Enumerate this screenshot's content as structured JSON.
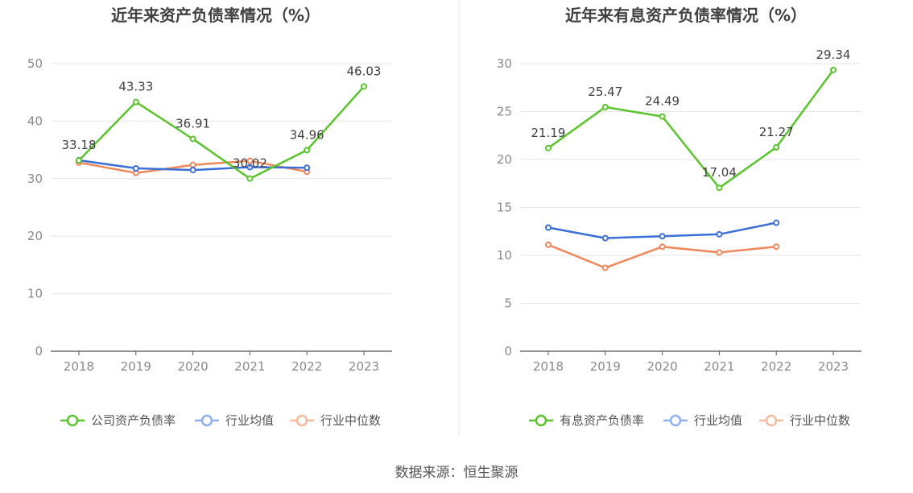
{
  "source": "数据来源：恒生聚源",
  "colors": {
    "company": "#5ac42d",
    "industry_avg": "#3a6fd8",
    "industry_median": "#f0875a",
    "legend_avg": "#8fb0ef",
    "legend_median": "#f7b99c",
    "grid": "#e6e6e6",
    "axis": "#555555",
    "divider": "#e8e8e8"
  },
  "chart_data": [
    {
      "type": "line",
      "title": "近年来资产负债率情况（%）",
      "categories": [
        "2018",
        "2019",
        "2020",
        "2021",
        "2022",
        "2023"
      ],
      "ylim": [
        0,
        50
      ],
      "yticks": [
        0,
        10,
        20,
        30,
        40,
        50
      ],
      "series": [
        {
          "name": "公司资产负债率",
          "key": "company",
          "values": [
            33.18,
            43.33,
            36.91,
            30.02,
            34.96,
            46.03
          ],
          "labels": true
        },
        {
          "name": "行业均值",
          "key": "industry_avg",
          "values": [
            33.2,
            31.8,
            31.5,
            32.0,
            31.9,
            null
          ],
          "labels": false
        },
        {
          "name": "行业中位数",
          "key": "industry_median",
          "values": [
            32.8,
            31.0,
            32.4,
            33.1,
            31.2,
            null
          ],
          "labels": false
        }
      ]
    },
    {
      "type": "line",
      "title": "近年来有息资产负债率情况（%）",
      "categories": [
        "2018",
        "2019",
        "2020",
        "2021",
        "2022",
        "2023"
      ],
      "ylim": [
        0,
        30
      ],
      "yticks": [
        0,
        5,
        10,
        15,
        20,
        25,
        30
      ],
      "series": [
        {
          "name": "有息资产负债率",
          "key": "company",
          "values": [
            21.19,
            25.47,
            24.49,
            17.04,
            21.27,
            29.34
          ],
          "labels": true
        },
        {
          "name": "行业均值",
          "key": "industry_avg",
          "values": [
            12.9,
            11.8,
            12.0,
            12.2,
            13.4,
            null
          ],
          "labels": false
        },
        {
          "name": "行业中位数",
          "key": "industry_median",
          "values": [
            11.1,
            8.7,
            10.9,
            10.3,
            10.9,
            null
          ],
          "labels": false
        }
      ]
    }
  ]
}
